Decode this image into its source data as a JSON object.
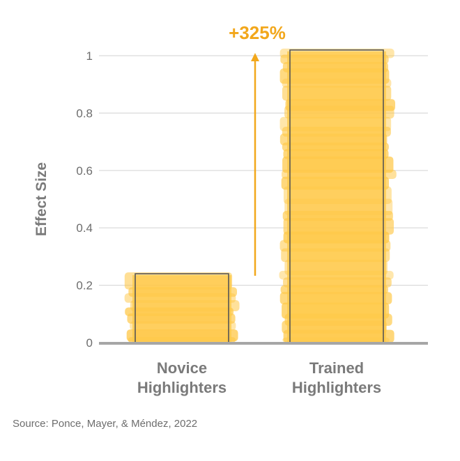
{
  "chart_data": {
    "type": "bar",
    "categories": [
      "Novice Highlighters",
      "Trained Highlighters"
    ],
    "category_lines": [
      [
        "Novice",
        "Highlighters"
      ],
      [
        "Trained",
        "Highlighters"
      ]
    ],
    "values": [
      0.24,
      1.02
    ],
    "ylabel": "Effect Size",
    "ylim": [
      0,
      1.0
    ],
    "yticks": [
      0,
      0.2,
      0.4,
      0.6,
      0.8,
      1
    ],
    "ytick_labels": [
      "0",
      "0.2",
      "0.4",
      "0.6",
      "0.8",
      "1"
    ],
    "grid": true,
    "annotation": "+325%",
    "colors": {
      "bar_fill": "#ffc94a",
      "bar_outline": "#555555",
      "arrow": "#f2a71b",
      "annotation": "#f2a71b",
      "gridline": "#d9d9d9",
      "baseline": "#a6a6a6",
      "text": "#7a7a7a"
    }
  },
  "source": "Source: Ponce, Mayer, & Méndez, 2022"
}
